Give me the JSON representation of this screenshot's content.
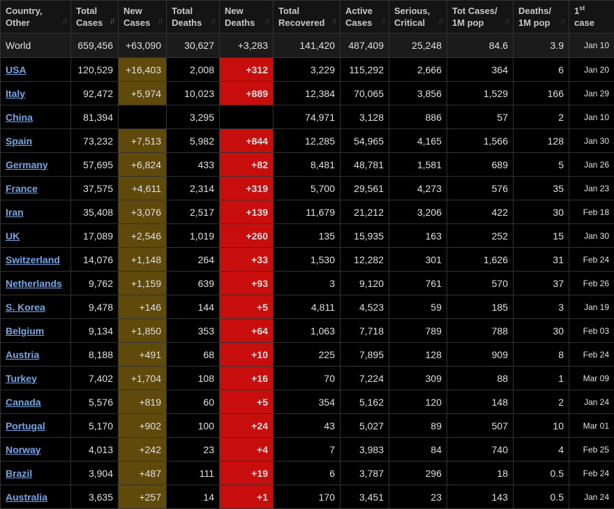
{
  "columns": [
    {
      "key": "country",
      "label": [
        "Country,",
        "Other"
      ]
    },
    {
      "key": "total_cases",
      "label": [
        "Total",
        "Cases"
      ]
    },
    {
      "key": "new_cases",
      "label": [
        "New",
        "Cases"
      ]
    },
    {
      "key": "total_deaths",
      "label": [
        "Total",
        "Deaths"
      ]
    },
    {
      "key": "new_deaths",
      "label": [
        "New",
        "Deaths"
      ]
    },
    {
      "key": "total_recovered",
      "label": [
        "Total",
        "Recovered"
      ]
    },
    {
      "key": "active_cases",
      "label": [
        "Active",
        "Cases"
      ]
    },
    {
      "key": "serious_critical",
      "label": [
        "Serious,",
        "Critical"
      ]
    },
    {
      "key": "cases_per_1m",
      "label": [
        "Tot Cases/",
        "1M pop"
      ]
    },
    {
      "key": "deaths_per_1m",
      "label": [
        "Deaths/",
        "1M pop"
      ]
    },
    {
      "key": "first_case",
      "label": [
        "1st",
        "case"
      ]
    }
  ],
  "sorted_column": "total_cases",
  "sort_icon": "sort-arrows-icon",
  "colors": {
    "background": "#000000",
    "link": "#6fa8e8",
    "new_cases_highlight": "#5f4a0c",
    "new_deaths_highlight": "#c80d0d"
  },
  "world": {
    "country": "World",
    "total_cases": "659,456",
    "new_cases": "+63,090",
    "total_deaths": "30,627",
    "new_deaths": "+3,283",
    "total_recovered": "141,420",
    "active_cases": "487,409",
    "serious_critical": "25,248",
    "cases_per_1m": "84.6",
    "deaths_per_1m": "3.9",
    "first_case": "Jan 10"
  },
  "rows": [
    {
      "country": "USA",
      "total_cases": "120,529",
      "new_cases": "+16,403",
      "total_deaths": "2,008",
      "new_deaths": "+312",
      "total_recovered": "3,229",
      "active_cases": "115,292",
      "serious_critical": "2,666",
      "cases_per_1m": "364",
      "deaths_per_1m": "6",
      "first_case": "Jan 20"
    },
    {
      "country": "Italy",
      "total_cases": "92,472",
      "new_cases": "+5,974",
      "total_deaths": "10,023",
      "new_deaths": "+889",
      "total_recovered": "12,384",
      "active_cases": "70,065",
      "serious_critical": "3,856",
      "cases_per_1m": "1,529",
      "deaths_per_1m": "166",
      "first_case": "Jan 29"
    },
    {
      "country": "China",
      "total_cases": "81,394",
      "new_cases": "",
      "total_deaths": "3,295",
      "new_deaths": "",
      "total_recovered": "74,971",
      "active_cases": "3,128",
      "serious_critical": "886",
      "cases_per_1m": "57",
      "deaths_per_1m": "2",
      "first_case": "Jan 10"
    },
    {
      "country": "Spain",
      "total_cases": "73,232",
      "new_cases": "+7,513",
      "total_deaths": "5,982",
      "new_deaths": "+844",
      "total_recovered": "12,285",
      "active_cases": "54,965",
      "serious_critical": "4,165",
      "cases_per_1m": "1,566",
      "deaths_per_1m": "128",
      "first_case": "Jan 30"
    },
    {
      "country": "Germany",
      "total_cases": "57,695",
      "new_cases": "+6,824",
      "total_deaths": "433",
      "new_deaths": "+82",
      "total_recovered": "8,481",
      "active_cases": "48,781",
      "serious_critical": "1,581",
      "cases_per_1m": "689",
      "deaths_per_1m": "5",
      "first_case": "Jan 26"
    },
    {
      "country": "France",
      "total_cases": "37,575",
      "new_cases": "+4,611",
      "total_deaths": "2,314",
      "new_deaths": "+319",
      "total_recovered": "5,700",
      "active_cases": "29,561",
      "serious_critical": "4,273",
      "cases_per_1m": "576",
      "deaths_per_1m": "35",
      "first_case": "Jan 23"
    },
    {
      "country": "Iran",
      "total_cases": "35,408",
      "new_cases": "+3,076",
      "total_deaths": "2,517",
      "new_deaths": "+139",
      "total_recovered": "11,679",
      "active_cases": "21,212",
      "serious_critical": "3,206",
      "cases_per_1m": "422",
      "deaths_per_1m": "30",
      "first_case": "Feb 18"
    },
    {
      "country": "UK",
      "total_cases": "17,089",
      "new_cases": "+2,546",
      "total_deaths": "1,019",
      "new_deaths": "+260",
      "total_recovered": "135",
      "active_cases": "15,935",
      "serious_critical": "163",
      "cases_per_1m": "252",
      "deaths_per_1m": "15",
      "first_case": "Jan 30"
    },
    {
      "country": "Switzerland",
      "total_cases": "14,076",
      "new_cases": "+1,148",
      "total_deaths": "264",
      "new_deaths": "+33",
      "total_recovered": "1,530",
      "active_cases": "12,282",
      "serious_critical": "301",
      "cases_per_1m": "1,626",
      "deaths_per_1m": "31",
      "first_case": "Feb 24"
    },
    {
      "country": "Netherlands",
      "total_cases": "9,762",
      "new_cases": "+1,159",
      "total_deaths": "639",
      "new_deaths": "+93",
      "total_recovered": "3",
      "active_cases": "9,120",
      "serious_critical": "761",
      "cases_per_1m": "570",
      "deaths_per_1m": "37",
      "first_case": "Feb 26"
    },
    {
      "country": "S. Korea",
      "total_cases": "9,478",
      "new_cases": "+146",
      "total_deaths": "144",
      "new_deaths": "+5",
      "total_recovered": "4,811",
      "active_cases": "4,523",
      "serious_critical": "59",
      "cases_per_1m": "185",
      "deaths_per_1m": "3",
      "first_case": "Jan 19"
    },
    {
      "country": "Belgium",
      "total_cases": "9,134",
      "new_cases": "+1,850",
      "total_deaths": "353",
      "new_deaths": "+64",
      "total_recovered": "1,063",
      "active_cases": "7,718",
      "serious_critical": "789",
      "cases_per_1m": "788",
      "deaths_per_1m": "30",
      "first_case": "Feb 03"
    },
    {
      "country": "Austria",
      "total_cases": "8,188",
      "new_cases": "+491",
      "total_deaths": "68",
      "new_deaths": "+10",
      "total_recovered": "225",
      "active_cases": "7,895",
      "serious_critical": "128",
      "cases_per_1m": "909",
      "deaths_per_1m": "8",
      "first_case": "Feb 24"
    },
    {
      "country": "Turkey",
      "total_cases": "7,402",
      "new_cases": "+1,704",
      "total_deaths": "108",
      "new_deaths": "+16",
      "total_recovered": "70",
      "active_cases": "7,224",
      "serious_critical": "309",
      "cases_per_1m": "88",
      "deaths_per_1m": "1",
      "first_case": "Mar 09"
    },
    {
      "country": "Canada",
      "total_cases": "5,576",
      "new_cases": "+819",
      "total_deaths": "60",
      "new_deaths": "+5",
      "total_recovered": "354",
      "active_cases": "5,162",
      "serious_critical": "120",
      "cases_per_1m": "148",
      "deaths_per_1m": "2",
      "first_case": "Jan 24"
    },
    {
      "country": "Portugal",
      "total_cases": "5,170",
      "new_cases": "+902",
      "total_deaths": "100",
      "new_deaths": "+24",
      "total_recovered": "43",
      "active_cases": "5,027",
      "serious_critical": "89",
      "cases_per_1m": "507",
      "deaths_per_1m": "10",
      "first_case": "Mar 01"
    },
    {
      "country": "Norway",
      "total_cases": "4,013",
      "new_cases": "+242",
      "total_deaths": "23",
      "new_deaths": "+4",
      "total_recovered": "7",
      "active_cases": "3,983",
      "serious_critical": "84",
      "cases_per_1m": "740",
      "deaths_per_1m": "4",
      "first_case": "Feb 25"
    },
    {
      "country": "Brazil",
      "total_cases": "3,904",
      "new_cases": "+487",
      "total_deaths": "111",
      "new_deaths": "+19",
      "total_recovered": "6",
      "active_cases": "3,787",
      "serious_critical": "296",
      "cases_per_1m": "18",
      "deaths_per_1m": "0.5",
      "first_case": "Feb 24"
    },
    {
      "country": "Australia",
      "total_cases": "3,635",
      "new_cases": "+257",
      "total_deaths": "14",
      "new_deaths": "+1",
      "total_recovered": "170",
      "active_cases": "3,451",
      "serious_critical": "23",
      "cases_per_1m": "143",
      "deaths_per_1m": "0.5",
      "first_case": "Jan 24"
    }
  ]
}
